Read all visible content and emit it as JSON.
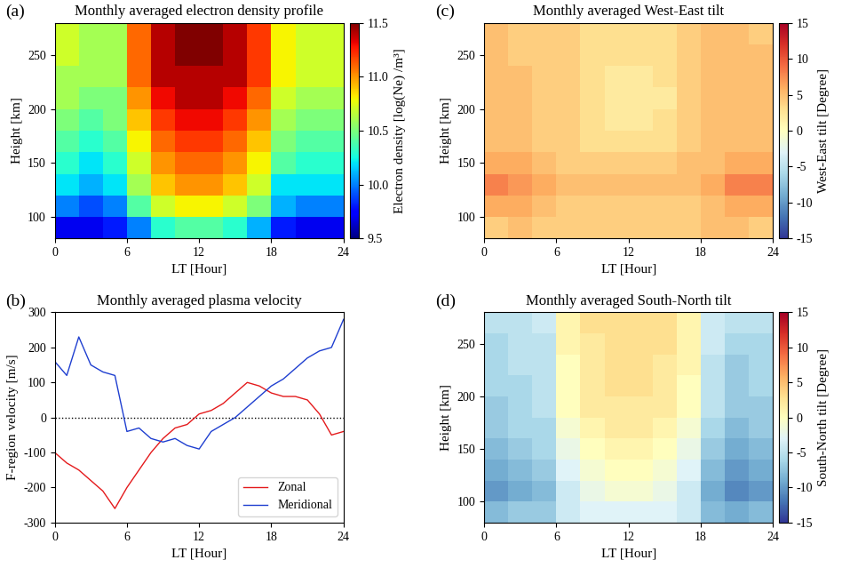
{
  "chart_data": [
    {
      "type": "heatmap",
      "panel_label": "(a)",
      "title": "Monthly averaged electron density profile",
      "x_label": "LT [Hour]",
      "y_label": "Height [km]",
      "color": "jet",
      "x_edges": [
        0,
        2,
        4,
        6,
        8,
        10,
        12,
        14,
        16,
        18,
        20,
        22,
        24
      ],
      "y_edges": [
        80,
        100,
        120,
        140,
        160,
        180,
        200,
        220,
        240,
        260,
        280
      ],
      "cells": [
        [
          9.7,
          9.7,
          9.8,
          10.0,
          10.3,
          10.4,
          10.4,
          10.3,
          10.1,
          9.8,
          9.7,
          9.7
        ],
        [
          10.0,
          9.9,
          10.0,
          10.4,
          10.7,
          10.8,
          10.8,
          10.7,
          10.5,
          10.1,
          10.0,
          10.0
        ],
        [
          10.2,
          10.1,
          10.2,
          10.6,
          10.9,
          11.0,
          11.0,
          10.9,
          10.7,
          10.2,
          10.2,
          10.2
        ],
        [
          10.3,
          10.2,
          10.3,
          10.7,
          11.0,
          11.1,
          11.1,
          11.0,
          10.8,
          10.4,
          10.3,
          10.3
        ],
        [
          10.4,
          10.3,
          10.4,
          10.8,
          11.1,
          11.2,
          11.2,
          11.1,
          10.9,
          10.5,
          10.4,
          10.4
        ],
        [
          10.5,
          10.4,
          10.5,
          10.9,
          11.2,
          11.3,
          11.3,
          11.2,
          11.0,
          10.6,
          10.5,
          10.5
        ],
        [
          10.6,
          10.5,
          10.5,
          11.0,
          11.3,
          11.4,
          11.4,
          11.3,
          11.1,
          10.7,
          10.6,
          10.6
        ],
        [
          10.6,
          10.6,
          10.6,
          11.1,
          11.4,
          11.4,
          11.4,
          11.4,
          11.2,
          10.8,
          10.7,
          10.7
        ],
        [
          10.7,
          10.6,
          10.6,
          11.1,
          11.4,
          11.5,
          11.5,
          11.4,
          11.2,
          10.8,
          10.7,
          10.7
        ],
        [
          10.7,
          10.6,
          10.6,
          11.1,
          11.4,
          11.5,
          11.5,
          11.4,
          11.2,
          10.8,
          10.7,
          10.7
        ]
      ],
      "xlim": [
        0,
        24
      ],
      "ylim": [
        80,
        280
      ],
      "xticks": [
        0,
        6,
        12,
        18,
        24
      ],
      "yticks": [
        100,
        150,
        200,
        250
      ],
      "colorbar": {
        "label": "Electron density [log(Ne) /m³]",
        "range": [
          9.5,
          11.5
        ],
        "ticks": [
          9.5,
          {
            "value": 10,
            "label": "10.0"
          },
          10.5,
          {
            "value": 11,
            "label": "11.0"
          },
          11.5
        ]
      }
    },
    {
      "type": "line",
      "panel_label": "(b)",
      "title": "Monthly averaged plasma velocity",
      "x_label": "LT [Hour]",
      "y_label": "F-region velocity [m/s]",
      "x": [
        0,
        1,
        2,
        3,
        4,
        5,
        6,
        7,
        8,
        9,
        10,
        11,
        12,
        13,
        14,
        15,
        16,
        17,
        18,
        19,
        20,
        21,
        22,
        23,
        24
      ],
      "series": [
        {
          "name": "Zonal",
          "color": "#e41a1c",
          "values": [
            -100,
            -130,
            -150,
            -180,
            -210,
            -260,
            -200,
            -150,
            -100,
            -60,
            -30,
            -20,
            10,
            20,
            40,
            70,
            100,
            90,
            70,
            60,
            60,
            50,
            10,
            -50,
            -40
          ]
        },
        {
          "name": "Meridional",
          "color": "#1f3fd0",
          "values": [
            160,
            120,
            230,
            150,
            130,
            120,
            -40,
            -30,
            -60,
            -70,
            -60,
            -80,
            -90,
            -40,
            -20,
            0,
            30,
            60,
            90,
            110,
            140,
            170,
            190,
            200,
            280
          ]
        }
      ],
      "reference_y": 0,
      "legend": "lower right",
      "xlim": [
        0,
        24
      ],
      "ylim": [
        -300,
        300
      ],
      "xticks": [
        0,
        6,
        12,
        18,
        24
      ],
      "yticks": [
        -300,
        -200,
        -100,
        0,
        100,
        200,
        300
      ]
    },
    {
      "type": "heatmap",
      "panel_label": "(c)",
      "title": "Monthly averaged West-East tilt",
      "x_label": "LT [Hour]",
      "y_label": "Height [km]",
      "color": "RdYlBu_r",
      "x_edges": [
        0,
        2,
        4,
        6,
        8,
        10,
        12,
        14,
        16,
        18,
        20,
        22,
        24
      ],
      "y_edges": [
        80,
        100,
        120,
        140,
        160,
        180,
        200,
        220,
        240,
        260,
        280
      ],
      "cells": [
        [
          4,
          5,
          4,
          4,
          4,
          4,
          4,
          4,
          4,
          5,
          5,
          4
        ],
        [
          6,
          6,
          5,
          4,
          4,
          4,
          4,
          4,
          4,
          5,
          6,
          6
        ],
        [
          8,
          7,
          6,
          5,
          5,
          5,
          5,
          5,
          5,
          6,
          8,
          8
        ],
        [
          6,
          6,
          5,
          4,
          4,
          4,
          4,
          4,
          5,
          5,
          6,
          6
        ],
        [
          5,
          5,
          4,
          4,
          3,
          3,
          3,
          3,
          4,
          5,
          5,
          5
        ],
        [
          5,
          5,
          4,
          4,
          3,
          2,
          2,
          3,
          4,
          5,
          5,
          5
        ],
        [
          5,
          5,
          4,
          4,
          3,
          2,
          2,
          2,
          4,
          5,
          5,
          5
        ],
        [
          5,
          5,
          4,
          4,
          3,
          2,
          2,
          3,
          4,
          5,
          5,
          5
        ],
        [
          5,
          4,
          4,
          4,
          3,
          3,
          3,
          3,
          4,
          5,
          5,
          5
        ],
        [
          5,
          4,
          4,
          4,
          3,
          3,
          3,
          3,
          4,
          5,
          5,
          4
        ]
      ],
      "xlim": [
        0,
        24
      ],
      "ylim": [
        80,
        280
      ],
      "xticks": [
        0,
        6,
        12,
        18,
        24
      ],
      "yticks": [
        100,
        150,
        200,
        250
      ],
      "colorbar": {
        "label": "West-East tilt [Degree]",
        "range": [
          -15,
          15
        ],
        "ticks": [
          -15,
          -10,
          -5,
          0,
          5,
          10,
          15
        ]
      }
    },
    {
      "type": "heatmap",
      "panel_label": "(d)",
      "title": "Monthly averaged South-North tilt",
      "x_label": "LT [Hour]",
      "y_label": "Height [km]",
      "color": "RdYlBu_r",
      "x_edges": [
        0,
        2,
        4,
        6,
        8,
        10,
        12,
        14,
        16,
        18,
        20,
        22,
        24
      ],
      "y_edges": [
        80,
        100,
        120,
        140,
        160,
        180,
        200,
        220,
        240,
        260,
        280
      ],
      "cells": [
        [
          -8,
          -7,
          -7,
          -4,
          -3,
          -3,
          -3,
          -3,
          -4,
          -8,
          -9,
          -8
        ],
        [
          -10,
          -9,
          -8,
          -4,
          -2,
          -1,
          -1,
          -2,
          -4,
          -9,
          -11,
          -10
        ],
        [
          -9,
          -8,
          -7,
          -3,
          -1,
          0,
          0,
          -1,
          -3,
          -8,
          -10,
          -9
        ],
        [
          -8,
          -7,
          -6,
          -2,
          0,
          1,
          1,
          0,
          -2,
          -7,
          -9,
          -8
        ],
        [
          -7,
          -6,
          -6,
          -1,
          1,
          2,
          2,
          1,
          -1,
          -6,
          -8,
          -7
        ],
        [
          -7,
          -6,
          -5,
          0,
          2,
          2,
          2,
          2,
          0,
          -5,
          -7,
          -7
        ],
        [
          -6,
          -6,
          -5,
          0,
          2,
          3,
          3,
          2,
          0,
          -5,
          -7,
          -6
        ],
        [
          -6,
          -5,
          -5,
          0,
          2,
          3,
          3,
          2,
          1,
          -5,
          -7,
          -6
        ],
        [
          -6,
          -5,
          -5,
          1,
          2,
          3,
          3,
          3,
          1,
          -4,
          -6,
          -6
        ],
        [
          -5,
          -5,
          -4,
          1,
          3,
          3,
          3,
          3,
          1,
          -4,
          -5,
          -5
        ]
      ],
      "xlim": [
        0,
        24
      ],
      "ylim": [
        80,
        280
      ],
      "xticks": [
        0,
        6,
        12,
        18,
        24
      ],
      "yticks": [
        100,
        150,
        200,
        250
      ],
      "colorbar": {
        "label": "South-North tilt [Degree]",
        "range": [
          -15,
          15
        ],
        "ticks": [
          -15,
          -10,
          -5,
          0,
          5,
          10,
          15
        ]
      }
    }
  ]
}
